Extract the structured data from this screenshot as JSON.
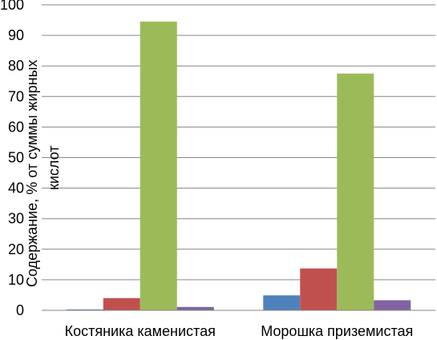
{
  "chart_data": {
    "type": "bar",
    "ylabel_lines": [
      "Содержание, % от суммы жирных",
      "кислот"
    ],
    "ylim": [
      0,
      100
    ],
    "yticks": [
      "0",
      "10",
      "20",
      "30",
      "40",
      "50",
      "60",
      "70",
      "80",
      "90",
      "100"
    ],
    "grid": true,
    "categories": [
      "Костяника каменистая",
      "Морошка приземистая"
    ],
    "series": [
      {
        "color": "#4f81bd",
        "values": [
          0.3,
          4.9
        ]
      },
      {
        "color": "#c0504d",
        "values": [
          4.0,
          13.7
        ]
      },
      {
        "color": "#9bbb59",
        "values": [
          94.5,
          77.5
        ]
      },
      {
        "color": "#8064a2",
        "values": [
          1.1,
          3.3
        ]
      }
    ]
  }
}
